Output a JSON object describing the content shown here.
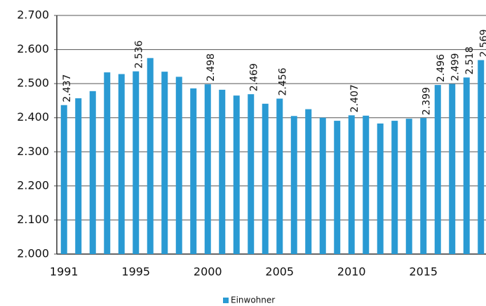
{
  "chart_data": {
    "type": "bar",
    "categories": [
      "1991",
      null,
      null,
      null,
      null,
      "1995",
      null,
      null,
      null,
      null,
      "2000",
      null,
      null,
      null,
      null,
      "2005",
      null,
      null,
      null,
      null,
      "2010",
      null,
      null,
      null,
      null,
      "2015",
      null,
      null,
      null,
      null
    ],
    "series": [
      {
        "name": "Einwohner",
        "color": "#2a9ad3",
        "values": [
          2437,
          2457,
          2478,
          2533,
          2528,
          2536,
          2575,
          2535,
          2520,
          2486,
          2498,
          2482,
          2465,
          2469,
          2441,
          2456,
          2405,
          2425,
          2400,
          2391,
          2407,
          2406,
          2383,
          2391,
          2397,
          2399,
          2496,
          2499,
          2518,
          2569
        ],
        "value_labels": [
          "2.437",
          null,
          null,
          null,
          null,
          "2.536",
          null,
          null,
          null,
          null,
          "2.498",
          null,
          null,
          "2.469",
          null,
          "2.456",
          null,
          null,
          null,
          null,
          "2.407",
          null,
          null,
          null,
          null,
          "2.399",
          "2.496",
          "2.499",
          "2.518",
          "2.569"
        ]
      }
    ],
    "ylim": [
      2000,
      2700
    ],
    "yticks": [
      {
        "value": 2000,
        "label": "2.000"
      },
      {
        "value": 2100,
        "label": "2.100"
      },
      {
        "value": 2200,
        "label": "2.200"
      },
      {
        "value": 2300,
        "label": "2.300"
      },
      {
        "value": 2400,
        "label": "2.400"
      },
      {
        "value": 2500,
        "label": "2.500"
      },
      {
        "value": 2600,
        "label": "2.600"
      },
      {
        "value": 2700,
        "label": "2.700"
      }
    ],
    "grid": true,
    "legend": "bottom"
  }
}
